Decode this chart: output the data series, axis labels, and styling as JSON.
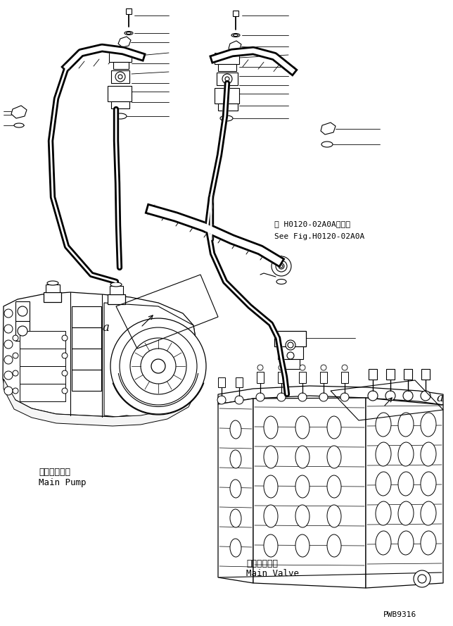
{
  "bg_color": "#ffffff",
  "line_color": "#000000",
  "fig_width": 6.44,
  "fig_height": 8.89,
  "dpi": 100,
  "label_main_pump_jp": "メインポンプ",
  "label_main_pump_en": "Main Pump",
  "label_main_valve_jp": "メインバルブ",
  "label_main_valve_en": "Main Valve",
  "label_see_fig_jp": "第 H0120-02A0A図参照",
  "label_see_fig_en": "See Fig.H0120-02A0A",
  "label_a": "a",
  "part_code": "PWB9316"
}
